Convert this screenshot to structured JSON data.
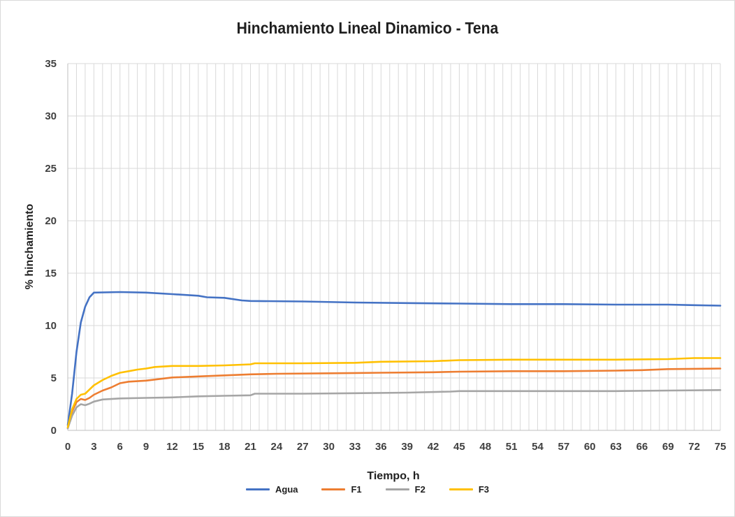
{
  "chart_data": {
    "type": "line",
    "title": "Hinchamiento Lineal Dinamico - Tena",
    "xlabel": "Tiempo, h",
    "ylabel": "% hinchamiento",
    "xlim": [
      0,
      75
    ],
    "ylim": [
      0,
      35
    ],
    "x_ticks": [
      0,
      3,
      6,
      9,
      12,
      15,
      18,
      21,
      24,
      27,
      30,
      33,
      36,
      39,
      42,
      45,
      48,
      51,
      54,
      57,
      60,
      63,
      66,
      69,
      72,
      75
    ],
    "y_ticks": [
      0,
      5,
      10,
      15,
      20,
      25,
      30,
      35
    ],
    "grid": true,
    "legend_position": "bottom",
    "series": [
      {
        "name": "Agua",
        "color": "#4472c4",
        "points": [
          [
            0,
            0.5
          ],
          [
            0.5,
            3.5
          ],
          [
            1,
            7.5
          ],
          [
            1.5,
            10.3
          ],
          [
            2,
            11.8
          ],
          [
            2.5,
            12.7
          ],
          [
            3,
            13.15
          ],
          [
            6,
            13.2
          ],
          [
            9,
            13.15
          ],
          [
            12,
            13.0
          ],
          [
            15,
            12.85
          ],
          [
            16,
            12.7
          ],
          [
            18,
            12.65
          ],
          [
            20,
            12.4
          ],
          [
            21,
            12.35
          ],
          [
            27,
            12.3
          ],
          [
            33,
            12.2
          ],
          [
            39,
            12.15
          ],
          [
            45,
            12.1
          ],
          [
            51,
            12.05
          ],
          [
            57,
            12.05
          ],
          [
            63,
            12.0
          ],
          [
            69,
            12.0
          ],
          [
            72,
            11.95
          ],
          [
            75,
            11.9
          ]
        ]
      },
      {
        "name": "F1",
        "color": "#ed7d31",
        "points": [
          [
            0,
            0.2
          ],
          [
            0.5,
            1.8
          ],
          [
            1,
            2.7
          ],
          [
            1.5,
            3.0
          ],
          [
            2,
            2.9
          ],
          [
            2.5,
            3.1
          ],
          [
            3,
            3.4
          ],
          [
            4,
            3.8
          ],
          [
            5,
            4.1
          ],
          [
            6,
            4.5
          ],
          [
            7,
            4.65
          ],
          [
            9,
            4.75
          ],
          [
            12,
            5.05
          ],
          [
            15,
            5.15
          ],
          [
            18,
            5.25
          ],
          [
            21,
            5.35
          ],
          [
            24,
            5.4
          ],
          [
            30,
            5.45
          ],
          [
            36,
            5.5
          ],
          [
            42,
            5.55
          ],
          [
            45,
            5.6
          ],
          [
            51,
            5.65
          ],
          [
            57,
            5.65
          ],
          [
            63,
            5.7
          ],
          [
            66,
            5.75
          ],
          [
            69,
            5.85
          ],
          [
            75,
            5.9
          ]
        ]
      },
      {
        "name": "F2",
        "color": "#a5a5a5",
        "points": [
          [
            0,
            0.2
          ],
          [
            0.5,
            1.4
          ],
          [
            1,
            2.2
          ],
          [
            1.5,
            2.5
          ],
          [
            2,
            2.4
          ],
          [
            2.5,
            2.55
          ],
          [
            3,
            2.75
          ],
          [
            4,
            2.95
          ],
          [
            6,
            3.05
          ],
          [
            9,
            3.1
          ],
          [
            12,
            3.15
          ],
          [
            15,
            3.25
          ],
          [
            18,
            3.3
          ],
          [
            21,
            3.35
          ],
          [
            21.5,
            3.5
          ],
          [
            27,
            3.5
          ],
          [
            33,
            3.55
          ],
          [
            39,
            3.6
          ],
          [
            44,
            3.7
          ],
          [
            45,
            3.75
          ],
          [
            51,
            3.75
          ],
          [
            57,
            3.75
          ],
          [
            63,
            3.75
          ],
          [
            69,
            3.8
          ],
          [
            75,
            3.85
          ]
        ]
      },
      {
        "name": "F3",
        "color": "#ffc000",
        "points": [
          [
            0,
            0.3
          ],
          [
            0.5,
            2.0
          ],
          [
            1,
            3.0
          ],
          [
            1.5,
            3.4
          ],
          [
            2,
            3.5
          ],
          [
            3,
            4.3
          ],
          [
            4,
            4.8
          ],
          [
            5,
            5.2
          ],
          [
            6,
            5.5
          ],
          [
            7,
            5.65
          ],
          [
            8,
            5.8
          ],
          [
            9,
            5.9
          ],
          [
            10,
            6.05
          ],
          [
            12,
            6.15
          ],
          [
            15,
            6.15
          ],
          [
            18,
            6.2
          ],
          [
            21,
            6.3
          ],
          [
            21.5,
            6.4
          ],
          [
            27,
            6.4
          ],
          [
            33,
            6.45
          ],
          [
            36,
            6.55
          ],
          [
            42,
            6.6
          ],
          [
            45,
            6.7
          ],
          [
            51,
            6.75
          ],
          [
            57,
            6.75
          ],
          [
            63,
            6.75
          ],
          [
            69,
            6.8
          ],
          [
            72,
            6.9
          ],
          [
            75,
            6.9
          ]
        ]
      }
    ]
  }
}
